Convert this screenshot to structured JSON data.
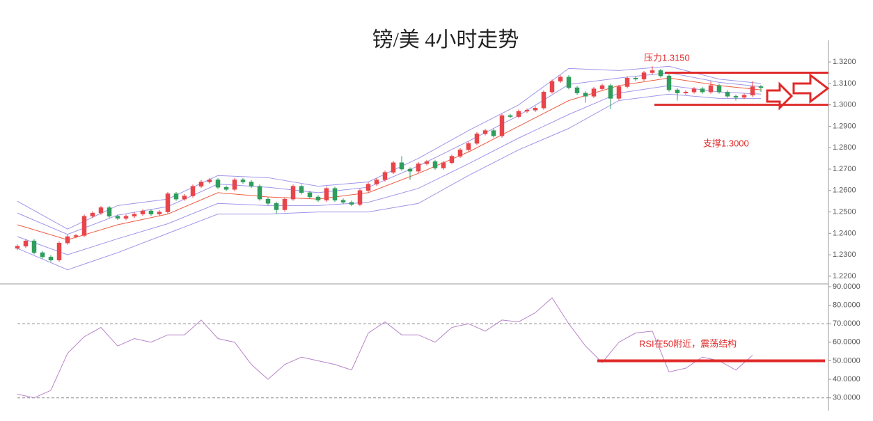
{
  "chart_data": [
    {
      "type": "candlestick",
      "title": "镑/美 4小时走势",
      "up_color": "#e8454a",
      "down_color": "#2f9d5c",
      "open": [
        1.233,
        1.234,
        1.2365,
        1.231,
        1.229,
        1.2275,
        1.2355,
        1.2385,
        1.239,
        1.248,
        1.2495,
        1.252,
        1.248,
        1.247,
        1.248,
        1.249,
        1.2505,
        1.249,
        1.25,
        1.2585,
        1.256,
        1.2575,
        1.262,
        1.264,
        1.265,
        1.2615,
        1.2605,
        1.265,
        1.264,
        1.262,
        1.256,
        1.254,
        1.251,
        1.256,
        1.262,
        1.259,
        1.257,
        1.2555,
        1.261,
        1.2555,
        1.2545,
        1.2535,
        1.26,
        1.263,
        1.265,
        1.2685,
        1.273,
        1.27,
        1.269,
        1.2725,
        1.2735,
        1.2705,
        1.273,
        1.276,
        1.279,
        1.282,
        1.2865,
        1.288,
        1.2855,
        1.295,
        1.2945,
        1.297,
        1.2975,
        1.2985,
        1.306,
        1.311,
        1.313,
        1.308,
        1.3055,
        1.304,
        1.3075,
        1.309,
        1.303,
        1.3085,
        1.3125,
        1.312,
        1.315,
        1.316,
        1.3135,
        1.307,
        1.3055,
        1.306,
        1.3075,
        1.306,
        1.309,
        1.306,
        1.304,
        1.3035,
        1.3045,
        1.3085
      ],
      "high": [
        1.2348,
        1.2373,
        1.2373,
        1.2318,
        1.2298,
        1.2363,
        1.2393,
        1.2398,
        1.2488,
        1.2503,
        1.2528,
        1.2528,
        1.2488,
        1.2488,
        1.2498,
        1.2513,
        1.2513,
        1.2508,
        1.2593,
        1.2593,
        1.2583,
        1.2628,
        1.2648,
        1.2658,
        1.2658,
        1.2623,
        1.2658,
        1.2658,
        1.2648,
        1.2628,
        1.2568,
        1.2548,
        1.2568,
        1.2628,
        1.2628,
        1.2598,
        1.2578,
        1.2618,
        1.2618,
        1.2563,
        1.2553,
        1.2608,
        1.2638,
        1.2658,
        1.2693,
        1.2738,
        1.276,
        1.2708,
        1.2733,
        1.2743,
        1.2743,
        1.2738,
        1.2768,
        1.2798,
        1.2828,
        1.2873,
        1.2888,
        1.2888,
        1.2958,
        1.2958,
        1.2978,
        1.2983,
        1.2993,
        1.3068,
        1.3118,
        1.3138,
        1.3138,
        1.3088,
        1.3063,
        1.3083,
        1.3098,
        1.3098,
        1.3093,
        1.3133,
        1.3133,
        1.3158,
        1.318,
        1.3168,
        1.3143,
        1.3078,
        1.3068,
        1.3083,
        1.3083,
        1.311,
        1.3098,
        1.3068,
        1.3048,
        1.3053,
        1.311,
        1.3093
      ],
      "low": [
        1.2322,
        1.2332,
        1.2302,
        1.2282,
        1.2267,
        1.2267,
        1.2347,
        1.2377,
        1.2382,
        1.2472,
        1.2487,
        1.2472,
        1.2462,
        1.2462,
        1.2472,
        1.2482,
        1.2482,
        1.2482,
        1.2492,
        1.2552,
        1.2552,
        1.2567,
        1.2612,
        1.2632,
        1.2607,
        1.2597,
        1.2597,
        1.2632,
        1.2612,
        1.2552,
        1.2532,
        1.249,
        1.2502,
        1.2552,
        1.2582,
        1.2562,
        1.2547,
        1.2547,
        1.2547,
        1.2537,
        1.2527,
        1.2527,
        1.2592,
        1.2622,
        1.2642,
        1.2677,
        1.2692,
        1.265,
        1.2682,
        1.2717,
        1.2697,
        1.2697,
        1.2722,
        1.2752,
        1.2782,
        1.2812,
        1.2857,
        1.2847,
        1.2847,
        1.2937,
        1.2937,
        1.2962,
        1.2967,
        1.2977,
        1.3052,
        1.3102,
        1.3072,
        1.3047,
        1.301,
        1.3032,
        1.3067,
        1.298,
        1.3022,
        1.3077,
        1.3112,
        1.3112,
        1.3142,
        1.3127,
        1.3062,
        1.302,
        1.3047,
        1.3052,
        1.3052,
        1.3052,
        1.3052,
        1.3032,
        1.302,
        1.3027,
        1.3037,
        1.306
      ],
      "close": [
        1.234,
        1.2365,
        1.231,
        1.229,
        1.2275,
        1.2355,
        1.2385,
        1.239,
        1.248,
        1.2495,
        1.252,
        1.248,
        1.247,
        1.248,
        1.249,
        1.2505,
        1.249,
        1.25,
        1.2585,
        1.256,
        1.2575,
        1.262,
        1.264,
        1.265,
        1.2615,
        1.2605,
        1.265,
        1.264,
        1.262,
        1.256,
        1.254,
        1.251,
        1.256,
        1.262,
        1.259,
        1.257,
        1.2555,
        1.261,
        1.2555,
        1.2545,
        1.2535,
        1.26,
        1.263,
        1.265,
        1.2685,
        1.273,
        1.27,
        1.269,
        1.2725,
        1.2735,
        1.2705,
        1.273,
        1.276,
        1.279,
        1.282,
        1.2865,
        1.288,
        1.2855,
        1.295,
        1.2945,
        1.297,
        1.2975,
        1.2985,
        1.306,
        1.311,
        1.313,
        1.308,
        1.3055,
        1.304,
        1.3075,
        1.309,
        1.303,
        1.3085,
        1.3125,
        1.312,
        1.315,
        1.316,
        1.3135,
        1.307,
        1.3055,
        1.306,
        1.3075,
        1.306,
        1.309,
        1.306,
        1.304,
        1.3035,
        1.3045,
        1.3085,
        1.308
      ],
      "overlay_x": [
        0,
        6,
        12,
        18,
        24,
        30,
        36,
        42,
        48,
        54,
        60,
        66,
        72,
        78,
        84,
        89
      ],
      "overlays": [
        {
          "color": "#9f95ea",
          "values": [
            1.255,
            1.242,
            1.253,
            1.256,
            1.267,
            1.266,
            1.262,
            1.264,
            1.275,
            1.288,
            1.3,
            1.317,
            1.316,
            1.318,
            1.312,
            1.31
          ]
        },
        {
          "color": "#9f95ea",
          "values": [
            1.2495,
            1.2395,
            1.2485,
            1.2525,
            1.263,
            1.2615,
            1.259,
            1.2615,
            1.2715,
            1.283,
            1.295,
            1.3095,
            1.3125,
            1.315,
            1.3105,
            1.3085
          ]
        },
        {
          "color": "#ee5c42",
          "values": [
            1.244,
            1.237,
            1.244,
            1.249,
            1.259,
            1.257,
            1.256,
            1.259,
            1.268,
            1.278,
            1.29,
            1.302,
            1.309,
            1.3125,
            1.309,
            1.307
          ]
        },
        {
          "color": "#9f95ea",
          "values": [
            1.2385,
            1.23,
            1.2375,
            1.2445,
            1.254,
            1.253,
            1.253,
            1.2545,
            1.261,
            1.2725,
            1.2845,
            1.2955,
            1.3055,
            1.309,
            1.306,
            1.305
          ]
        },
        {
          "color": "#9f95ea",
          "values": [
            1.233,
            1.223,
            1.231,
            1.24,
            1.249,
            1.249,
            1.25,
            1.25,
            1.254,
            1.267,
            1.279,
            1.289,
            1.302,
            1.305,
            1.303,
            1.303
          ]
        }
      ],
      "ylim": [
        1.2164,
        1.3288
      ],
      "yticks": [
        {
          "value": 1.22,
          "label": "1.2200"
        },
        {
          "value": 1.23,
          "label": "1.2300"
        },
        {
          "value": 1.24,
          "label": "1.2400"
        },
        {
          "value": 1.25,
          "label": "1.2500"
        },
        {
          "value": 1.26,
          "label": "1.2600"
        },
        {
          "value": 1.27,
          "label": "1.2700"
        },
        {
          "value": 1.28,
          "label": "1.2800"
        },
        {
          "value": 1.29,
          "label": "1.2900"
        },
        {
          "value": 1.3,
          "label": "1.3000"
        },
        {
          "value": 1.31,
          "label": "1.3100"
        },
        {
          "value": 1.32,
          "label": "1.3200"
        }
      ],
      "levels": [
        {
          "value": 1.315,
          "label": "压力1.3150",
          "color": "#e02a2a"
        },
        {
          "value": 1.3,
          "label": "支撑1.3000",
          "color": "#e02a2a"
        }
      ]
    },
    {
      "type": "line",
      "x": [
        0,
        2,
        4,
        6,
        8,
        10,
        12,
        14,
        16,
        18,
        20,
        22,
        24,
        26,
        28,
        30,
        32,
        34,
        36,
        38,
        40,
        42,
        44,
        46,
        48,
        50,
        52,
        54,
        56,
        58,
        60,
        62,
        64,
        66,
        68,
        70,
        72,
        74,
        76,
        78,
        80,
        82,
        84,
        86,
        88
      ],
      "series": [
        {
          "color": "#b883c9",
          "values": [
            32,
            30,
            34,
            54,
            63,
            68,
            58,
            62,
            60,
            64,
            64,
            72,
            62,
            60,
            48,
            40,
            48,
            52,
            50,
            48,
            45,
            65,
            71,
            64,
            64,
            60,
            68,
            70,
            66,
            72,
            71,
            76,
            84,
            70,
            58,
            49,
            60,
            65,
            66,
            44,
            46,
            52,
            50,
            45,
            53
          ]
        }
      ],
      "ylim": [
        25,
        91.5
      ],
      "yticks": [
        {
          "value": 30,
          "label": "30.0000"
        },
        {
          "value": 40,
          "label": "40.0000"
        },
        {
          "value": 50,
          "label": "50.0000"
        },
        {
          "value": 60,
          "label": "60.0000"
        },
        {
          "value": 70,
          "label": "70.0000"
        },
        {
          "value": 80,
          "label": "80.0000"
        },
        {
          "value": 90,
          "label": "90.0000"
        }
      ],
      "reference_lines": [
        70,
        30
      ],
      "level": {
        "value": 50,
        "label": "RSI在50附近，震荡结构",
        "color": "#e02a2a"
      }
    }
  ]
}
